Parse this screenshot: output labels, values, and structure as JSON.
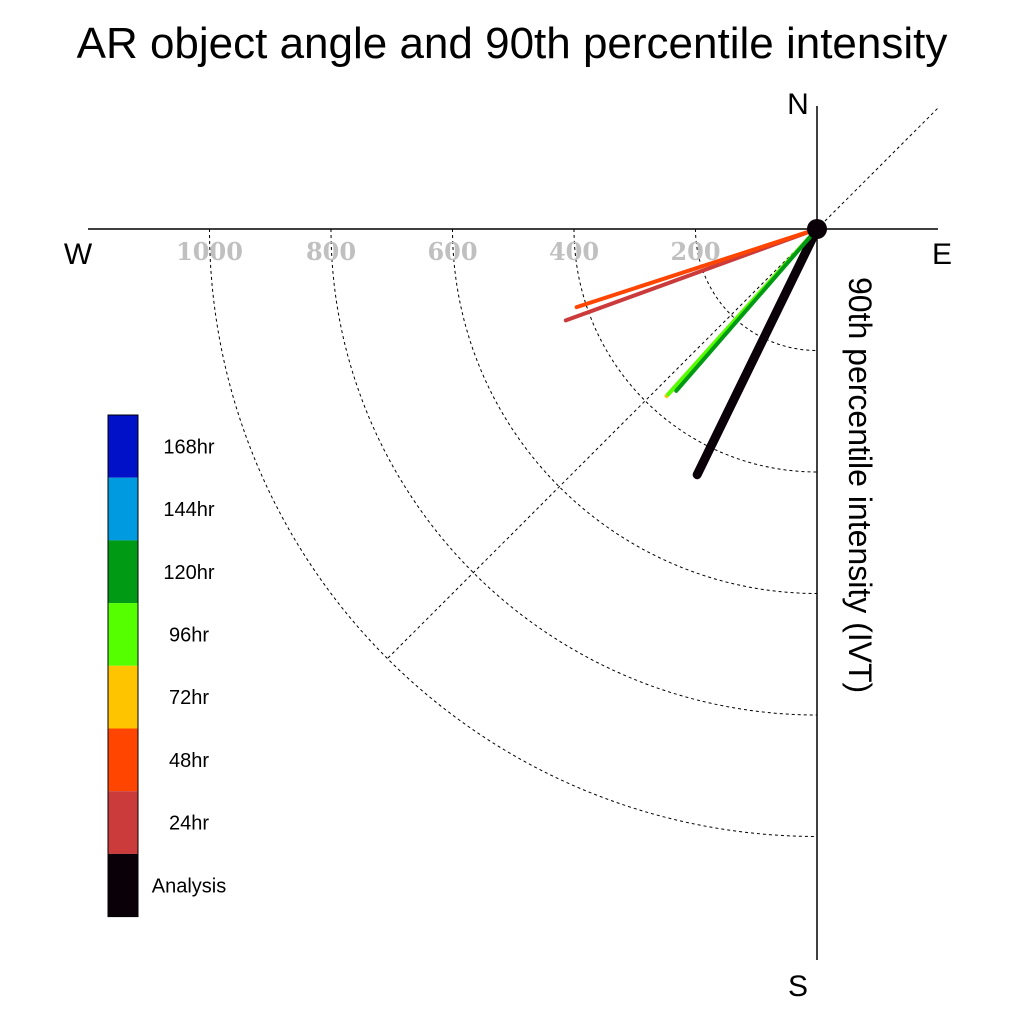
{
  "chart_data": {
    "type": "polar-vector",
    "title": "AR object angle and 90th percentile intensity",
    "ylabel": "90th percentile intensity (IVT)",
    "compass": {
      "north": "N",
      "south": "S",
      "east": "E",
      "west": "W"
    },
    "radial_ticks": [
      200,
      400,
      600,
      800,
      1000
    ],
    "rlim": [
      0,
      1000
    ],
    "grid": true,
    "series": [
      {
        "name": "Analysis",
        "color": "#0a0008",
        "bearing_deg": 206,
        "intensity": 450
      },
      {
        "name": "24hr",
        "color": "#cc3b3b",
        "bearing_deg": 250,
        "intensity": 440
      },
      {
        "name": "48hr",
        "color": "#ff4500",
        "bearing_deg": 252,
        "intensity": 416
      },
      {
        "name": "72hr",
        "color": "#ffc400",
        "bearing_deg": 222,
        "intensity": 370
      },
      {
        "name": "96hr",
        "color": "#55ff00",
        "bearing_deg": 222,
        "intensity": 366
      },
      {
        "name": "120hr",
        "color": "#009a14",
        "bearing_deg": 221,
        "intensity": 353
      }
    ],
    "legend": {
      "position": "left",
      "entries": [
        {
          "label": "168hr",
          "color": "#0011c8"
        },
        {
          "label": "144hr",
          "color": "#009ae0"
        },
        {
          "label": "120hr",
          "color": "#009a14"
        },
        {
          "label": "96hr",
          "color": "#55ff00"
        },
        {
          "label": "72hr",
          "color": "#ffc400"
        },
        {
          "label": "48hr",
          "color": "#ff4500"
        },
        {
          "label": "24hr",
          "color": "#cc3b3b"
        },
        {
          "label": "Analysis",
          "color": "#0a0008"
        }
      ]
    }
  }
}
